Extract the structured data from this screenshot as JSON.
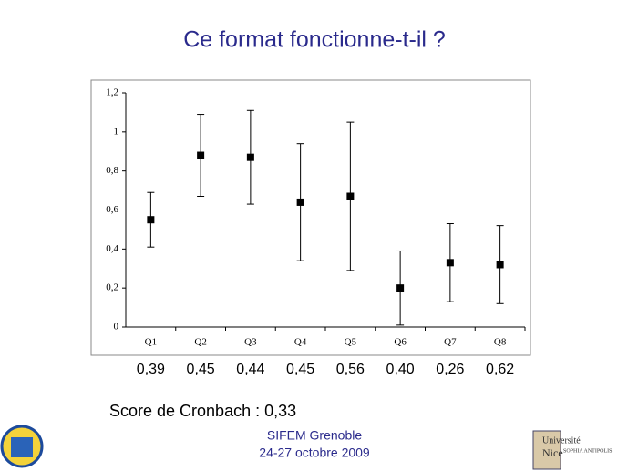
{
  "title": "Ce format fonctionne-t-il ?",
  "chart_data": {
    "type": "errorbar",
    "categories": [
      "Q1",
      "Q2",
      "Q3",
      "Q4",
      "Q5",
      "Q6",
      "Q7",
      "Q8"
    ],
    "values": [
      0.55,
      0.88,
      0.87,
      0.64,
      0.67,
      0.2,
      0.33,
      0.32
    ],
    "errors": [
      0.14,
      0.21,
      0.24,
      0.3,
      0.38,
      0.19,
      0.2,
      0.2
    ],
    "color": "#000000",
    "ylim": [
      0,
      1.2
    ],
    "yticks": [
      0,
      {
        "value": 0.2,
        "label": "0,2"
      },
      {
        "value": 0.4,
        "label": "0,4"
      },
      {
        "value": 0.6,
        "label": "0,6"
      },
      {
        "value": 0.8,
        "label": "0,8"
      },
      1,
      {
        "value": 1.2,
        "label": "1,2"
      }
    ]
  },
  "item_scores": [
    "0,39",
    "0,45",
    "0,44",
    "0,45",
    "0,56",
    "0,40",
    "0,26",
    "0,62"
  ],
  "score": "Score de Cronbach : 0,33",
  "footer": {
    "line1": "SIFEM Grenoble",
    "line2": "24-27 octobre 2009"
  },
  "logo_right": {
    "line1": "Université",
    "line2": "Nice",
    "line3": "SOPHIA ANTIPOLIS"
  }
}
